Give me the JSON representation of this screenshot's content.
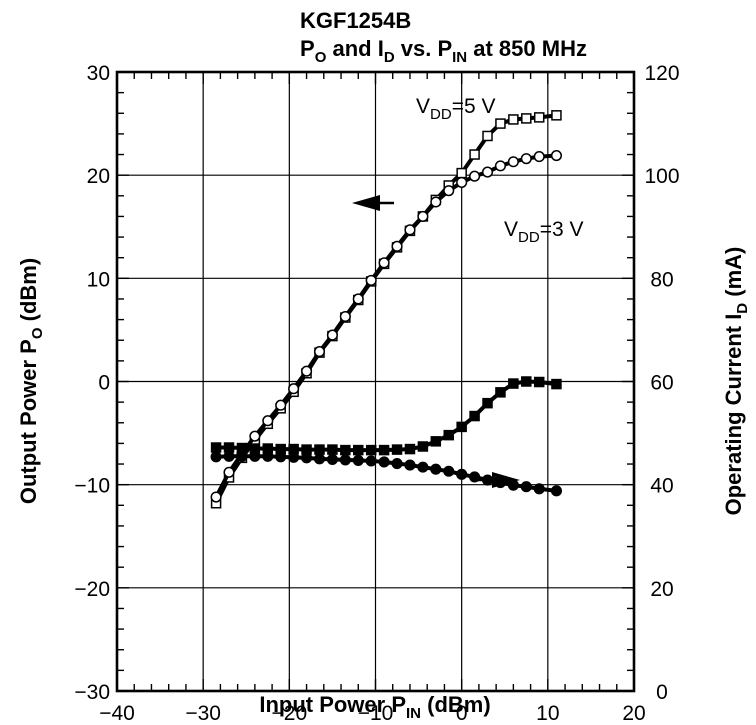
{
  "chart_data": {
    "type": "line",
    "title": "KGF1254B",
    "subtitle": {
      "p": "P",
      "p_sub": "O",
      "and": " and I",
      "i_sub": "D",
      "vs": " vs. P",
      "pin_sub": "IN",
      "tail": " at 850 MHz"
    },
    "xlabel": {
      "main": "Input Power  P",
      "sub": "IN",
      "unit": " (dBm)"
    },
    "ylabel_left": {
      "main": "Output Power  P",
      "sub": "O",
      "unit": "  (dBm)"
    },
    "ylabel_right": {
      "main": "Operating Current  I",
      "sub": "D",
      "unit": "  (mA)"
    },
    "xlim": [
      -40,
      20
    ],
    "ylim_left": [
      -30,
      30
    ],
    "ylim_right": [
      0,
      120
    ],
    "x_ticks": [
      "−40",
      "−30",
      "−20",
      "−10",
      "0",
      "10",
      "20"
    ],
    "y_left_ticks": [
      "−30",
      "−20",
      "−10",
      "0",
      "10",
      "20",
      "30"
    ],
    "y_right_ticks": [
      "0",
      "20",
      "40",
      "60",
      "80",
      "100",
      "120"
    ],
    "grid": true,
    "annotations": {
      "vdd5": {
        "main": "V",
        "sub": "DD",
        "tail": "=5 V"
      },
      "vdd3": {
        "main": "V",
        "sub": "DD",
        "tail": "=3 V"
      }
    },
    "series": [
      {
        "axis": "left",
        "marker": "open-square",
        "x": [
          -28.5,
          -27,
          -25.5,
          -24,
          -22.5,
          -21,
          -19.5,
          -18,
          -16.5,
          -15,
          -13.5,
          -12,
          -10.5,
          -9,
          -7.5,
          -6,
          -4.5,
          -3,
          -1.5,
          0,
          1.5,
          3,
          4.5,
          6,
          7.5,
          9,
          11
        ],
        "y": [
          -11.8,
          -9.3,
          -7.4,
          -5.7,
          -4.1,
          -2.6,
          -1.0,
          0.8,
          2.8,
          4.4,
          6.2,
          7.9,
          9.7,
          11.4,
          13.0,
          14.6,
          16.0,
          17.6,
          19.0,
          20.2,
          22.0,
          23.8,
          25.0,
          25.4,
          25.5,
          25.6,
          25.8
        ]
      },
      {
        "axis": "left",
        "marker": "open-circle",
        "x": [
          -28.5,
          -27,
          -25.5,
          -24,
          -22.5,
          -21,
          -19.5,
          -18,
          -16.5,
          -15,
          -13.5,
          -12,
          -10.5,
          -9,
          -7.5,
          -6,
          -4.5,
          -3,
          -1.5,
          0,
          1.5,
          3,
          4.5,
          6,
          7.5,
          9,
          11
        ],
        "y": [
          -11.2,
          -8.8,
          -7.0,
          -5.3,
          -3.8,
          -2.3,
          -0.7,
          1.0,
          2.9,
          4.5,
          6.3,
          8.0,
          9.8,
          11.5,
          13.1,
          14.7,
          16.0,
          17.4,
          18.5,
          19.3,
          19.9,
          20.3,
          20.9,
          21.3,
          21.6,
          21.8,
          21.9
        ]
      },
      {
        "axis": "right",
        "marker": "filled-square",
        "x": [
          -28.5,
          -27,
          -25.5,
          -24,
          -22.5,
          -21,
          -19.5,
          -18,
          -16.5,
          -15,
          -13.5,
          -12,
          -10.5,
          -9,
          -7.5,
          -6,
          -4.5,
          -3,
          -1.5,
          0,
          1.5,
          3,
          4.5,
          6,
          7.5,
          9,
          11
        ],
        "y": [
          47.2,
          47.2,
          47.1,
          47.0,
          47.0,
          46.9,
          46.9,
          46.8,
          46.8,
          46.8,
          46.7,
          46.7,
          46.7,
          46.7,
          46.8,
          46.9,
          47.4,
          48.4,
          49.6,
          51.2,
          53.3,
          55.8,
          57.9,
          59.6,
          60.0,
          59.9,
          59.5
        ]
      },
      {
        "axis": "right",
        "marker": "filled-circle",
        "x": [
          -28.5,
          -27,
          -25.5,
          -24,
          -22.5,
          -21,
          -19.5,
          -18,
          -16.5,
          -15,
          -13.5,
          -12,
          -10.5,
          -9,
          -7.5,
          -6,
          -4.5,
          -3,
          -1.5,
          0,
          1.5,
          3,
          4.5,
          6,
          7.5,
          9,
          11
        ],
        "y": [
          45.4,
          45.5,
          45.5,
          45.5,
          45.5,
          45.4,
          45.3,
          45.2,
          45.0,
          44.9,
          44.8,
          44.7,
          44.6,
          44.4,
          44.1,
          43.8,
          43.4,
          43.0,
          42.6,
          42.0,
          41.5,
          40.9,
          40.4,
          39.9,
          39.6,
          39.2,
          38.8
        ]
      }
    ]
  }
}
